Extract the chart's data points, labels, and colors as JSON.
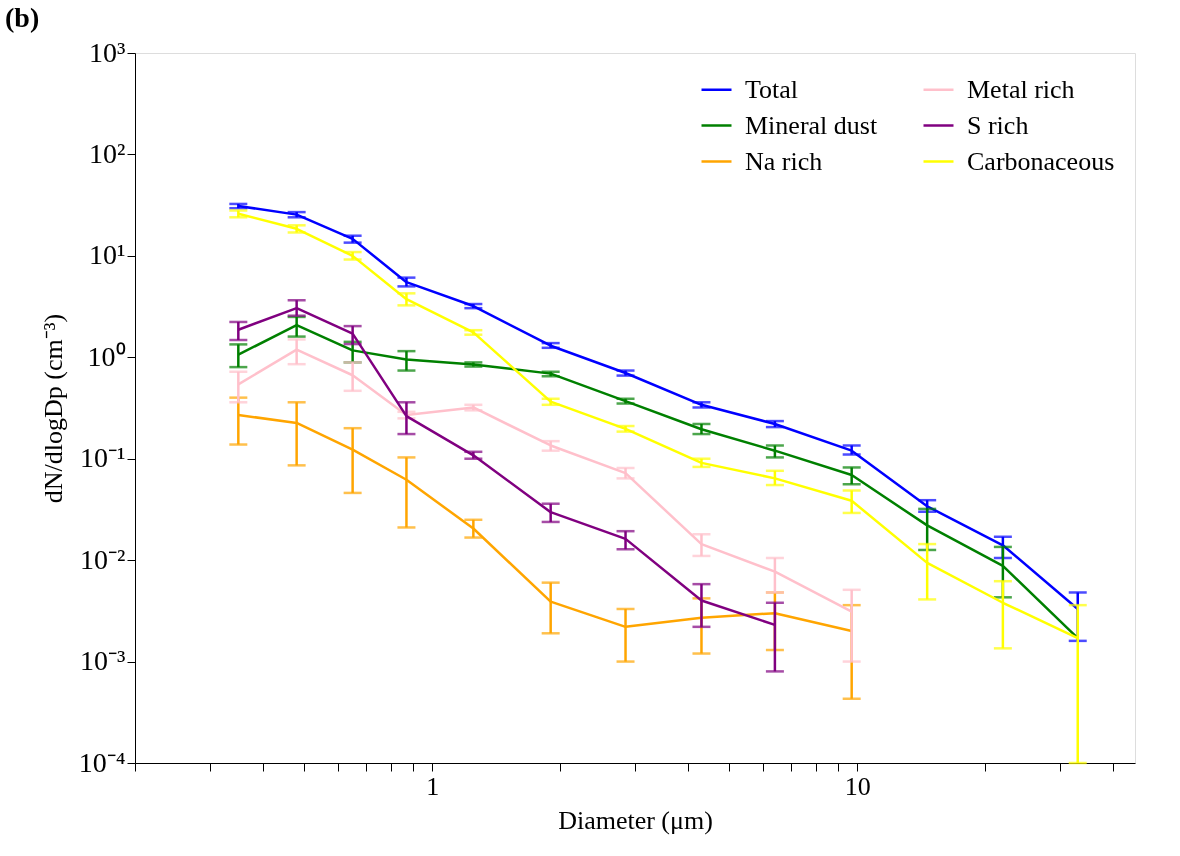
{
  "chart_data": {
    "type": "line",
    "title": "(b)",
    "xlabel": "Diameter (μm)",
    "ylabel": "dN/dlogDp (cm⁻³)",
    "log": "xy",
    "grid": false,
    "legend": "top right",
    "marker": "none",
    "line_style": "solid",
    "xlim": [
      0.2,
      45
    ],
    "ylim": [
      0.0001,
      1000
    ],
    "xticks": [
      {
        "value": 0.2,
        "label": null
      },
      {
        "value": 0.3,
        "label": null
      },
      {
        "value": 0.4,
        "label": null
      },
      {
        "value": 0.5,
        "label": null
      },
      {
        "value": 0.6,
        "label": null
      },
      {
        "value": 0.7,
        "label": null
      },
      {
        "value": 0.8,
        "label": null
      },
      {
        "value": 0.9,
        "label": null
      },
      1,
      {
        "value": 2,
        "label": null
      },
      {
        "value": 3,
        "label": null
      },
      {
        "value": 4,
        "label": null
      },
      {
        "value": 5,
        "label": null
      },
      {
        "value": 6,
        "label": null
      },
      {
        "value": 7,
        "label": null
      },
      {
        "value": 8,
        "label": null
      },
      {
        "value": 9,
        "label": null
      },
      10,
      {
        "value": 20,
        "label": null
      },
      {
        "value": 30,
        "label": null
      },
      {
        "value": 40,
        "label": null
      }
    ],
    "yticks": [
      {
        "value": 0.0001,
        "label": "10⁻⁴"
      },
      {
        "value": 0.001,
        "label": "10⁻³"
      },
      {
        "value": 0.01,
        "label": "10⁻²"
      },
      {
        "value": 0.1,
        "label": "10⁻¹"
      },
      {
        "value": 1,
        "label": "10⁰"
      },
      {
        "value": 10,
        "label": "10¹"
      },
      {
        "value": 100,
        "label": "10²"
      },
      {
        "value": 1000,
        "label": "10³"
      }
    ],
    "series": [
      {
        "name": "Total",
        "color": "#0000ff",
        "x": [
          0.35,
          0.48,
          0.65,
          0.87,
          1.25,
          1.9,
          2.85,
          4.3,
          6.4,
          9.7,
          14.6,
          22,
          33
        ],
        "values": [
          31,
          25.5,
          14.7,
          5.5,
          3.2,
          1.3,
          0.7,
          0.34,
          0.22,
          0.12,
          0.034,
          0.014,
          0.0033
        ],
        "errors": [
          [
            29.5,
            32.5
          ],
          [
            24,
            27
          ],
          [
            13.5,
            15.8
          ],
          [
            5,
            6.1
          ],
          [
            3.05,
            3.35
          ],
          [
            1.24,
            1.38
          ],
          [
            0.66,
            0.74
          ],
          [
            0.32,
            0.36
          ],
          [
            0.205,
            0.235
          ],
          [
            0.11,
            0.135
          ],
          [
            0.03,
            0.039
          ],
          [
            0.0105,
            0.017
          ],
          [
            0.0016,
            0.0048
          ]
        ]
      },
      {
        "name": "Mineral dust",
        "color": "#008000",
        "x": [
          0.35,
          0.48,
          0.65,
          0.87,
          1.25,
          1.9,
          2.85,
          4.3,
          6.4,
          9.7,
          14.6,
          22,
          33
        ],
        "values": [
          1.06,
          2.08,
          1.17,
          0.95,
          0.85,
          0.69,
          0.37,
          0.195,
          0.12,
          0.069,
          0.022,
          0.0088,
          0.0017
        ],
        "errors": [
          [
            0.8,
            1.34
          ],
          [
            1.6,
            2.5
          ],
          [
            0.89,
            1.42
          ],
          [
            0.74,
            1.15
          ],
          [
            0.81,
            0.89
          ],
          [
            0.65,
            0.72
          ],
          [
            0.35,
            0.39
          ],
          [
            0.175,
            0.22
          ],
          [
            0.103,
            0.135
          ],
          [
            0.056,
            0.082
          ],
          [
            0.0126,
            0.032
          ],
          [
            0.0043,
            0.0135
          ],
          null
        ]
      },
      {
        "name": "Na rich",
        "color": "#ffa500",
        "x": [
          0.35,
          0.48,
          0.65,
          0.87,
          1.25,
          1.9,
          2.85,
          4.3,
          6.4,
          9.7
        ],
        "values": [
          0.27,
          0.225,
          0.123,
          0.062,
          0.0205,
          0.0039,
          0.0022,
          0.0027,
          0.003,
          0.002
        ],
        "errors": [
          [
            0.138,
            0.4
          ],
          [
            0.086,
            0.36
          ],
          [
            0.046,
            0.2
          ],
          [
            0.021,
            0.103
          ],
          [
            0.0167,
            0.025
          ],
          [
            0.0019,
            0.006
          ],
          [
            0.001,
            0.0033
          ],
          [
            0.0012,
            0.0042
          ],
          [
            0.0013,
            0.0048
          ],
          [
            0.00043,
            0.0036
          ]
        ]
      },
      {
        "name": "Metal rich",
        "color": "#ffc0cb",
        "x": [
          0.35,
          0.48,
          0.65,
          0.87,
          1.25,
          1.9,
          2.85,
          4.3,
          6.4,
          9.7
        ],
        "values": [
          0.54,
          1.19,
          0.665,
          0.27,
          0.32,
          0.135,
          0.072,
          0.0144,
          0.0077,
          0.0031
        ],
        "errors": [
          [
            0.36,
            0.72
          ],
          [
            0.855,
            1.5
          ],
          [
            0.467,
            0.89
          ],
          [
            0.25,
            0.29
          ],
          [
            0.3,
            0.34
          ],
          [
            0.12,
            0.149
          ],
          [
            0.064,
            0.081
          ],
          [
            0.011,
            0.018
          ],
          [
            0.0048,
            0.0105
          ],
          [
            0.001,
            0.0051
          ]
        ]
      },
      {
        "name": "S rich",
        "color": "#800080",
        "x": [
          0.35,
          0.48,
          0.65,
          0.87,
          1.25,
          1.9,
          2.85,
          4.3,
          6.4
        ],
        "values": [
          1.87,
          3.05,
          1.71,
          0.263,
          0.108,
          0.0297,
          0.0162,
          0.004,
          0.0023
        ],
        "errors": [
          [
            1.48,
            2.23
          ],
          [
            2.57,
            3.65
          ],
          [
            1.35,
            2.03
          ],
          [
            0.175,
            0.36
          ],
          [
            0.1,
            0.117
          ],
          [
            0.0238,
            0.036
          ],
          [
            0.0128,
            0.0193
          ],
          [
            0.0022,
            0.0058
          ],
          [
            0.0008,
            0.0038
          ]
        ]
      },
      {
        "name": "Carbonaceous",
        "color": "#ffff00",
        "x": [
          0.35,
          0.48,
          0.65,
          0.87,
          1.25,
          1.9,
          2.85,
          4.3,
          6.4,
          9.7,
          14.6,
          22,
          33
        ],
        "values": [
          26,
          18.5,
          10,
          3.74,
          1.76,
          0.366,
          0.197,
          0.091,
          0.064,
          0.0385,
          0.0094,
          0.0038,
          0.0017
        ],
        "errors": [
          [
            24,
            28
          ],
          [
            17,
            20
          ],
          [
            9.2,
            10.9
          ],
          [
            3.25,
            4.27
          ],
          [
            1.67,
            1.85
          ],
          [
            0.34,
            0.39
          ],
          [
            0.185,
            0.21
          ],
          [
            0.083,
            0.1
          ],
          [
            0.055,
            0.076
          ],
          [
            0.0292,
            0.0486
          ],
          [
            0.0041,
            0.0144
          ],
          [
            0.00135,
            0.0062
          ],
          [
            0.0001,
            0.0036
          ]
        ]
      }
    ]
  }
}
